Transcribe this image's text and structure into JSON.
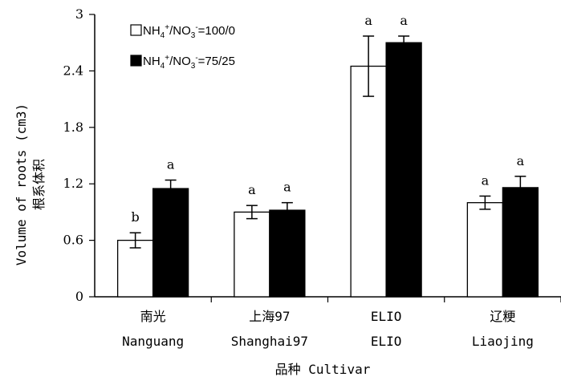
{
  "chart_data": {
    "type": "bar",
    "ylabel_line1": "Volume of roots (cm3)",
    "ylabel_line2": "根系体积",
    "xlabel": "品种 Cultivar",
    "ylim": [
      0,
      3
    ],
    "yticks": [
      "0",
      "0.6",
      "1.2",
      "1.8",
      "2.4",
      "3"
    ],
    "categories": [
      {
        "line1": "南光",
        "line2": "Nanguang"
      },
      {
        "line1": "上海97",
        "line2": "Shanghai97"
      },
      {
        "line1": "ELIO",
        "line2": "ELIO"
      },
      {
        "line1": "辽粳",
        "line2": "Liaojing"
      }
    ],
    "series": [
      {
        "name": "NH4+/NO3-=100/0",
        "fill": "#ffffff",
        "values": [
          0.6,
          0.9,
          2.45,
          1.0
        ],
        "errors": [
          0.08,
          0.07,
          0.32,
          0.07
        ],
        "letters": [
          "b",
          "a",
          "a",
          "a"
        ]
      },
      {
        "name": "NH4+/NO3-=75/25",
        "fill": "#000000",
        "values": [
          1.15,
          0.92,
          2.7,
          1.16
        ],
        "errors": [
          0.09,
          0.08,
          0.07,
          0.12
        ],
        "letters": [
          "a",
          "a",
          "a",
          "a"
        ]
      }
    ],
    "legend": {
      "position": "top-left",
      "entries": [
        {
          "prefix": "NH",
          "sub1": "4",
          "sup1": "+",
          "mid": "/NO",
          "sub2": "3",
          "sup2": "-",
          "suffix": "=100/0"
        },
        {
          "prefix": "NH",
          "sub1": "4",
          "sup1": "+",
          "mid": "/NO",
          "sub2": "3",
          "sup2": "-",
          "suffix": "=75/25"
        }
      ]
    },
    "grid": false
  }
}
